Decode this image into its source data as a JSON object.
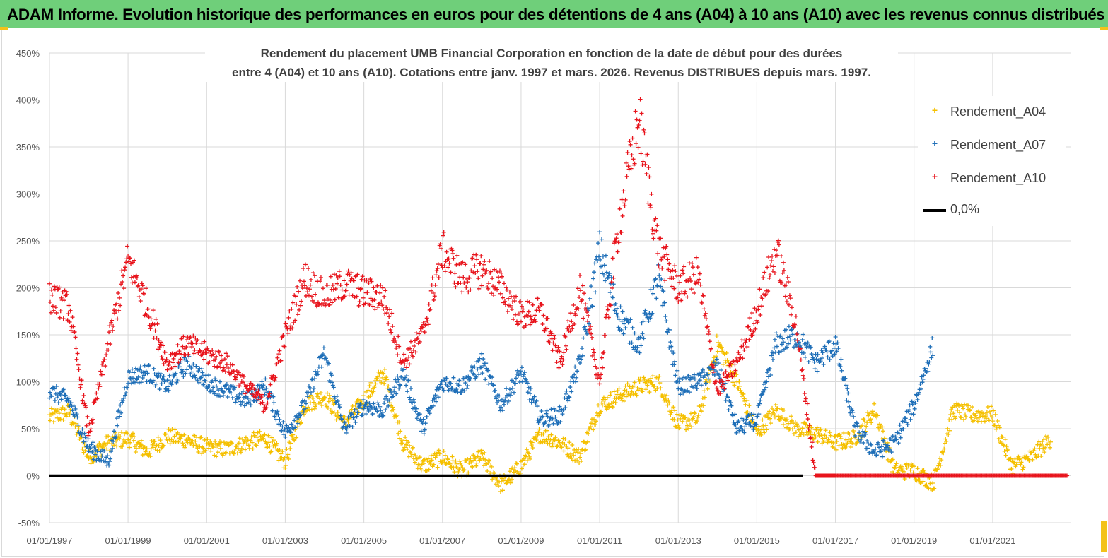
{
  "banner": {
    "title": "ADAM Informe. Evolution historique des performances en euros pour des détentions de 4 ans (A04) à 10 ans (A10) avec les revenus connus distribués"
  },
  "colors": {
    "banner_bg": "#6fcf7a",
    "A04": "#f5c000",
    "A07": "#1f6fb8",
    "A10": "#e8141c",
    "zero_line": "#000000",
    "grid": "#d9d9d9"
  },
  "chart_data": {
    "type": "scatter",
    "title_line1": "Rendement du placement UMB Financial Corporation en fonction de la date de début pour des durées",
    "title_line2": "entre 4 (A04) et 10 ans (A10). Cotations entre janv. 1997 et mars. 2026. Revenus DISTRIBUES depuis mars. 1997.",
    "xlabel": "",
    "ylabel": "",
    "ylim": [
      -50,
      450
    ],
    "y_ticks": [
      -50,
      0,
      50,
      100,
      150,
      200,
      250,
      300,
      350,
      400,
      450
    ],
    "y_tick_labels": [
      "-50%",
      "0%",
      "50%",
      "100%",
      "150%",
      "200%",
      "250%",
      "300%",
      "350%",
      "400%",
      "450%"
    ],
    "xlim": [
      "1997-01-01",
      "2023-01-01"
    ],
    "x_ticks": [
      "1997-01-01",
      "1999-01-01",
      "2001-01-01",
      "2003-01-01",
      "2005-01-01",
      "2007-01-01",
      "2009-01-01",
      "2011-01-01",
      "2013-01-01",
      "2015-01-01",
      "2017-01-01",
      "2019-01-01",
      "2021-01-01"
    ],
    "x_tick_labels": [
      "01/01/1997",
      "01/01/1999",
      "01/01/2001",
      "01/01/2003",
      "01/01/2005",
      "01/01/2007",
      "01/01/2009",
      "01/01/2011",
      "01/01/2013",
      "01/01/2015",
      "01/01/2017",
      "01/01/2019",
      "01/01/2021"
    ],
    "grid": true,
    "legend_position": "top-right",
    "series": [
      {
        "name": "Rendement_A04",
        "marker": "+",
        "x": [
          "1997-01-01",
          "1997-07-01",
          "1998-01-01",
          "1998-07-01",
          "1999-01-01",
          "1999-07-01",
          "2000-01-01",
          "2000-07-01",
          "2001-01-01",
          "2001-07-01",
          "2002-01-01",
          "2002-07-01",
          "2003-01-01",
          "2003-07-01",
          "2004-01-01",
          "2004-07-01",
          "2005-01-01",
          "2005-07-01",
          "2006-01-01",
          "2006-07-01",
          "2007-01-01",
          "2007-07-01",
          "2008-01-01",
          "2008-07-01",
          "2009-01-01",
          "2009-07-01",
          "2010-01-01",
          "2010-07-01",
          "2011-01-01",
          "2011-07-01",
          "2012-01-01",
          "2012-07-01",
          "2013-01-01",
          "2013-07-01",
          "2014-01-01",
          "2014-07-01",
          "2015-01-01",
          "2015-07-01",
          "2016-01-01",
          "2016-07-01",
          "2017-01-01",
          "2017-07-01",
          "2018-01-01",
          "2018-07-01",
          "2019-01-01",
          "2019-07-01",
          "2020-01-01",
          "2020-07-01",
          "2021-01-01",
          "2021-07-01",
          "2022-01-01",
          "2022-07-01"
        ],
        "values": [
          62,
          68,
          20,
          35,
          40,
          25,
          42,
          38,
          30,
          28,
          35,
          40,
          15,
          75,
          85,
          55,
          80,
          110,
          35,
          10,
          20,
          5,
          20,
          -10,
          10,
          45,
          35,
          20,
          75,
          85,
          95,
          100,
          55,
          60,
          140,
          100,
          45,
          70,
          50,
          45,
          35,
          40,
          70,
          5,
          5,
          -8,
          70,
          65,
          65,
          10,
          20,
          40
        ]
      },
      {
        "name": "Rendement_A07",
        "marker": "+",
        "x": [
          "1997-01-01",
          "1997-07-01",
          "1998-01-01",
          "1998-07-01",
          "1999-01-01",
          "1999-07-01",
          "2000-01-01",
          "2000-07-01",
          "2001-01-01",
          "2001-07-01",
          "2002-01-01",
          "2002-07-01",
          "2003-01-01",
          "2003-07-01",
          "2004-01-01",
          "2004-07-01",
          "2005-01-01",
          "2005-07-01",
          "2006-01-01",
          "2006-07-01",
          "2007-01-01",
          "2007-07-01",
          "2008-01-01",
          "2008-07-01",
          "2009-01-01",
          "2009-07-01",
          "2010-01-01",
          "2010-07-01",
          "2011-01-01",
          "2011-07-01",
          "2012-01-01",
          "2012-07-01",
          "2013-01-01",
          "2013-07-01",
          "2014-01-01",
          "2014-07-01",
          "2015-01-01",
          "2015-07-01",
          "2016-01-01",
          "2016-07-01",
          "2017-01-01",
          "2017-07-01",
          "2018-01-01",
          "2018-07-01",
          "2019-01-01",
          "2019-07-01"
        ],
        "values": [
          90,
          80,
          30,
          15,
          105,
          110,
          95,
          120,
          100,
          90,
          80,
          95,
          45,
          75,
          130,
          50,
          75,
          70,
          110,
          50,
          100,
          95,
          120,
          75,
          110,
          60,
          65,
          120,
          240,
          170,
          140,
          210,
          95,
          100,
          115,
          50,
          60,
          140,
          150,
          120,
          140,
          50,
          25,
          35,
          75,
          140
        ]
      },
      {
        "name": "Rendement_A10",
        "marker": "+",
        "x": [
          "1997-01-01",
          "1997-07-01",
          "1998-01-01",
          "1998-07-01",
          "1999-01-01",
          "1999-07-01",
          "2000-01-01",
          "2000-07-01",
          "2001-01-01",
          "2001-07-01",
          "2002-01-01",
          "2002-07-01",
          "2003-01-01",
          "2003-07-01",
          "2004-01-01",
          "2004-07-01",
          "2005-01-01",
          "2005-07-01",
          "2006-01-01",
          "2006-07-01",
          "2007-01-01",
          "2007-07-01",
          "2008-01-01",
          "2008-07-01",
          "2009-01-01",
          "2009-07-01",
          "2010-01-01",
          "2010-07-01",
          "2011-01-01",
          "2011-07-01",
          "2012-01-01",
          "2012-07-01",
          "2013-01-01",
          "2013-07-01",
          "2014-01-01",
          "2014-07-01",
          "2015-01-01",
          "2015-07-01",
          "2016-01-01",
          "2016-07-01",
          "2017-01-01",
          "2018-01-01",
          "2019-01-01",
          "2020-01-01",
          "2021-01-01",
          "2022-01-01",
          "2022-12-01"
        ],
        "values": [
          190,
          180,
          45,
          140,
          230,
          180,
          120,
          140,
          130,
          120,
          95,
          75,
          150,
          210,
          190,
          205,
          195,
          190,
          120,
          150,
          240,
          210,
          220,
          200,
          170,
          175,
          120,
          200,
          100,
          270,
          380,
          240,
          200,
          215,
          90,
          120,
          175,
          240,
          160,
          0,
          0,
          0,
          0,
          0,
          0,
          0,
          0
        ]
      },
      {
        "name": "0,0%",
        "marker": "line",
        "x": [
          "1997-01-01",
          "2016-03-01"
        ],
        "values": [
          0,
          0
        ]
      }
    ]
  }
}
